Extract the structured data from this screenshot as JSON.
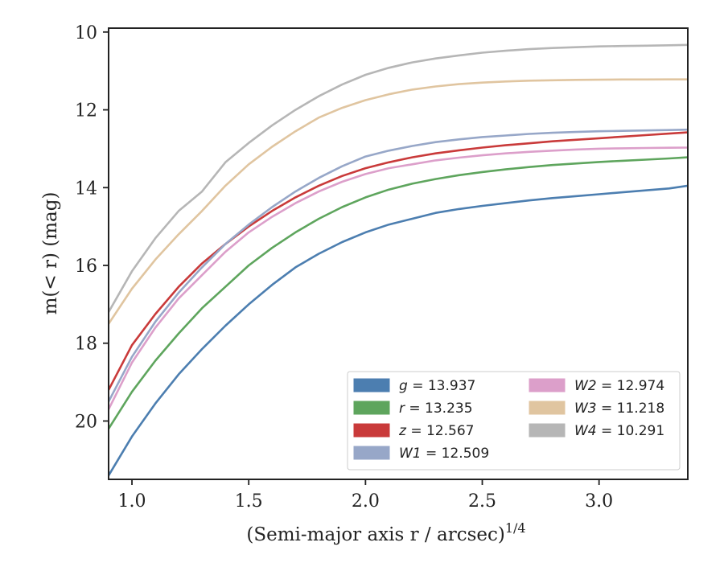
{
  "chart_data": {
    "type": "line",
    "xlabel": "(Semi-major axis r / arcsec)",
    "xlabel_exponent": "1/4",
    "ylabel": "m(< r) (mag)",
    "xlim": [
      0.9,
      3.38
    ],
    "ylim": [
      21.5,
      9.9
    ],
    "y_inverted": true,
    "xticks": [
      1.0,
      1.5,
      2.0,
      2.5,
      3.0
    ],
    "xtick_labels": [
      "1.0",
      "1.5",
      "2.0",
      "2.5",
      "3.0"
    ],
    "yticks": [
      10,
      12,
      14,
      16,
      18,
      20
    ],
    "ytick_labels": [
      "10",
      "12",
      "14",
      "16",
      "18",
      "20"
    ],
    "grid": false,
    "legend_position": "lower-right",
    "legend_columns": 2,
    "series": [
      {
        "name": "g = 13.937",
        "var": "g",
        "value": "13.937",
        "color": "#4c7eb0",
        "x": [
          0.9,
          1.0,
          1.1,
          1.2,
          1.3,
          1.4,
          1.5,
          1.6,
          1.7,
          1.8,
          1.9,
          2.0,
          2.1,
          2.2,
          2.3,
          2.4,
          2.5,
          2.6,
          2.7,
          2.8,
          2.9,
          3.0,
          3.1,
          3.2,
          3.3,
          3.38
        ],
        "y": [
          21.4,
          20.4,
          19.55,
          18.8,
          18.15,
          17.55,
          17.0,
          16.5,
          16.05,
          15.7,
          15.4,
          15.15,
          14.95,
          14.8,
          14.65,
          14.55,
          14.47,
          14.4,
          14.33,
          14.27,
          14.22,
          14.17,
          14.12,
          14.07,
          14.02,
          13.95
        ]
      },
      {
        "name": "r = 13.235",
        "var": "r",
        "value": "13.235",
        "color": "#5ea55d",
        "x": [
          0.9,
          1.0,
          1.1,
          1.2,
          1.3,
          1.4,
          1.5,
          1.6,
          1.7,
          1.8,
          1.9,
          2.0,
          2.1,
          2.2,
          2.3,
          2.4,
          2.5,
          2.6,
          2.7,
          2.8,
          2.9,
          3.0,
          3.1,
          3.2,
          3.3,
          3.38
        ],
        "y": [
          20.2,
          19.25,
          18.45,
          17.75,
          17.1,
          16.55,
          16.0,
          15.55,
          15.15,
          14.8,
          14.5,
          14.25,
          14.05,
          13.9,
          13.78,
          13.68,
          13.6,
          13.53,
          13.47,
          13.42,
          13.38,
          13.34,
          13.31,
          13.28,
          13.25,
          13.22
        ]
      },
      {
        "name": "z = 12.567",
        "var": "z",
        "value": "12.567",
        "color": "#c93a3a",
        "x": [
          0.9,
          1.0,
          1.1,
          1.2,
          1.3,
          1.4,
          1.5,
          1.6,
          1.7,
          1.8,
          1.9,
          2.0,
          2.1,
          2.2,
          2.3,
          2.4,
          2.5,
          2.6,
          2.7,
          2.8,
          2.9,
          3.0,
          3.1,
          3.2,
          3.3,
          3.38
        ],
        "y": [
          19.2,
          18.05,
          17.25,
          16.55,
          15.95,
          15.45,
          15.0,
          14.6,
          14.25,
          13.95,
          13.7,
          13.5,
          13.35,
          13.22,
          13.12,
          13.04,
          12.97,
          12.91,
          12.86,
          12.81,
          12.77,
          12.73,
          12.69,
          12.65,
          12.61,
          12.58
        ]
      },
      {
        "name": "W1 = 12.509",
        "var": "W1",
        "value": "12.509",
        "color": "#97a7c8",
        "x": [
          0.9,
          1.0,
          1.1,
          1.2,
          1.3,
          1.4,
          1.5,
          1.6,
          1.7,
          1.8,
          1.9,
          2.0,
          2.1,
          2.2,
          2.3,
          2.4,
          2.5,
          2.6,
          2.7,
          2.8,
          2.9,
          3.0,
          3.1,
          3.2,
          3.3,
          3.38
        ],
        "y": [
          19.5,
          18.35,
          17.45,
          16.7,
          16.05,
          15.45,
          14.95,
          14.5,
          14.1,
          13.75,
          13.45,
          13.2,
          13.05,
          12.93,
          12.83,
          12.76,
          12.7,
          12.66,
          12.62,
          12.59,
          12.57,
          12.55,
          12.54,
          12.53,
          12.52,
          12.51
        ]
      },
      {
        "name": "W2 = 12.974",
        "var": "W2",
        "value": "12.974",
        "color": "#dc9fca",
        "x": [
          0.9,
          1.0,
          1.1,
          1.2,
          1.3,
          1.4,
          1.5,
          1.6,
          1.7,
          1.8,
          1.9,
          2.0,
          2.1,
          2.2,
          2.3,
          2.4,
          2.5,
          2.6,
          2.7,
          2.8,
          2.9,
          3.0,
          3.1,
          3.2,
          3.3,
          3.38
        ],
        "y": [
          19.7,
          18.5,
          17.6,
          16.85,
          16.25,
          15.65,
          15.15,
          14.75,
          14.4,
          14.1,
          13.85,
          13.65,
          13.5,
          13.4,
          13.3,
          13.23,
          13.17,
          13.12,
          13.08,
          13.05,
          13.02,
          13.0,
          12.99,
          12.98,
          12.975,
          12.97
        ]
      },
      {
        "name": "W3 = 11.218",
        "var": "W3",
        "value": "11.218",
        "color": "#e0c5a0",
        "x": [
          0.9,
          1.0,
          1.1,
          1.2,
          1.3,
          1.4,
          1.5,
          1.6,
          1.7,
          1.8,
          1.9,
          2.0,
          2.1,
          2.2,
          2.3,
          2.4,
          2.5,
          2.6,
          2.7,
          2.8,
          2.9,
          3.0,
          3.1,
          3.2,
          3.3,
          3.38
        ],
        "y": [
          17.5,
          16.6,
          15.85,
          15.2,
          14.6,
          13.95,
          13.4,
          12.95,
          12.55,
          12.2,
          11.95,
          11.75,
          11.6,
          11.48,
          11.4,
          11.34,
          11.3,
          11.27,
          11.25,
          11.24,
          11.23,
          11.225,
          11.22,
          11.22,
          11.218,
          11.218
        ]
      },
      {
        "name": "W4 = 10.291",
        "var": "W4",
        "value": "10.291",
        "color": "#b6b6b6",
        "x": [
          0.9,
          1.0,
          1.1,
          1.2,
          1.3,
          1.4,
          1.5,
          1.6,
          1.7,
          1.8,
          1.9,
          2.0,
          2.1,
          2.2,
          2.3,
          2.4,
          2.5,
          2.6,
          2.7,
          2.8,
          2.9,
          3.0,
          3.1,
          3.2,
          3.3,
          3.38
        ],
        "y": [
          17.2,
          16.15,
          15.3,
          14.6,
          14.1,
          13.35,
          12.85,
          12.4,
          12.0,
          11.65,
          11.35,
          11.1,
          10.92,
          10.78,
          10.68,
          10.6,
          10.53,
          10.48,
          10.44,
          10.41,
          10.39,
          10.37,
          10.36,
          10.35,
          10.34,
          10.33
        ]
      }
    ]
  }
}
